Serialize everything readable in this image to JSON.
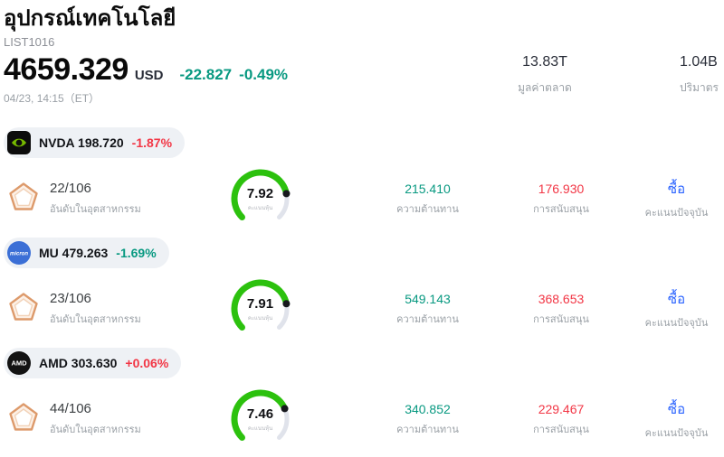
{
  "header": {
    "title": "อุปกรณ์เทคโนโลยี",
    "list_id": "LIST1016",
    "price": "4659.329",
    "currency": "USD",
    "change_abs": "-22.827",
    "change_pct": "-0.49%",
    "change_color": "#089981",
    "timestamp": "04/23, 14:15（ET）",
    "stats": [
      {
        "value": "13.83T",
        "label": "มูลค่าตลาด"
      },
      {
        "value": "1.04B",
        "label": "ปริมาตร"
      }
    ]
  },
  "columns": {
    "rank": "อันดับในอุตสาหกรรม",
    "gauge": "คะแนนหุ้น",
    "resistance": "ความต้านทาน",
    "support": "การสนับสนุน",
    "signal": "คะแนนปัจจุบัน"
  },
  "colors": {
    "green": "#089981",
    "red": "#f23645",
    "blue": "#2962ff",
    "gauge_green": "#2cc10e",
    "gauge_track": "#e0e3eb",
    "gauge_dot": "#16181d"
  },
  "rows": [
    {
      "ticker": "NVDA",
      "price": "198.720",
      "change": "-1.87%",
      "change_color": "#f23645",
      "icon": "nvidia-logo",
      "rank": "22/106",
      "score": "7.92",
      "score_value": 7.92,
      "resistance": "215.410",
      "resistance_color": "#089981",
      "support": "176.930",
      "support_color": "#f23645",
      "signal": "ซื้อ",
      "signal_color": "#2962ff"
    },
    {
      "ticker": "MU",
      "price": "479.263",
      "change": "-1.69%",
      "change_color": "#089981",
      "icon": "micron-logo",
      "icon_text": "micron",
      "rank": "23/106",
      "score": "7.91",
      "score_value": 7.91,
      "resistance": "549.143",
      "resistance_color": "#089981",
      "support": "368.653",
      "support_color": "#f23645",
      "signal": "ซื้อ",
      "signal_color": "#2962ff"
    },
    {
      "ticker": "AMD",
      "price": "303.630",
      "change": "+0.06%",
      "change_color": "#f23645",
      "icon": "amd-logo",
      "icon_text": "AMD",
      "rank": "44/106",
      "score": "7.46",
      "score_value": 7.46,
      "resistance": "340.852",
      "resistance_color": "#089981",
      "support": "229.467",
      "support_color": "#f23645",
      "signal": "ซื้อ",
      "signal_color": "#2962ff"
    }
  ]
}
